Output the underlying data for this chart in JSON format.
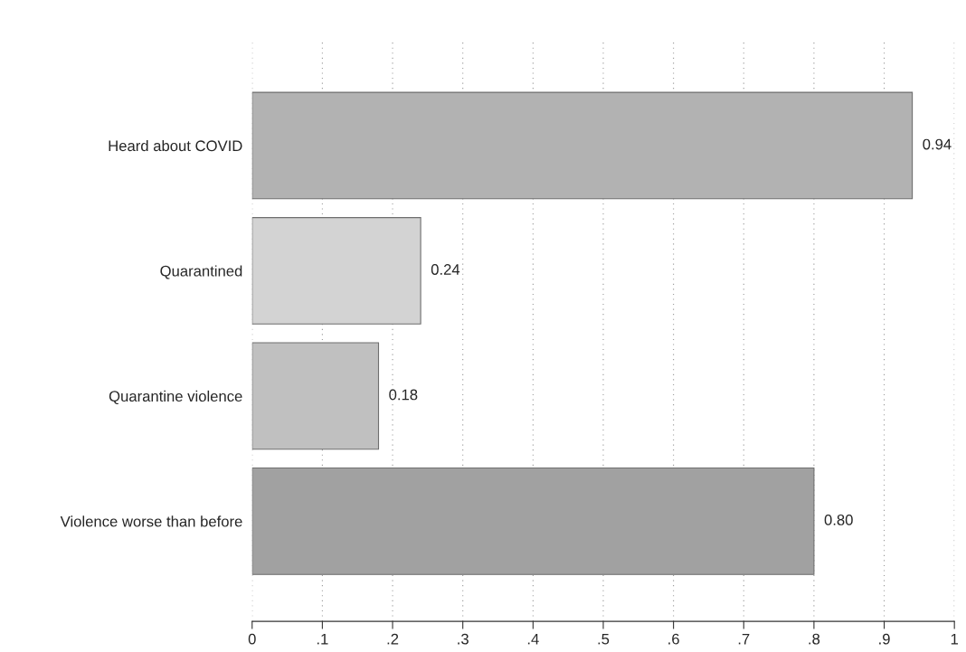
{
  "chart_data": {
    "type": "bar",
    "orientation": "horizontal",
    "categories": [
      "Heard about COVID",
      "Quarantined",
      "Quarantine violence",
      "Violence worse than before"
    ],
    "values": [
      0.94,
      0.24,
      0.18,
      0.8
    ],
    "value_labels": [
      "0.94",
      "0.24",
      "0.18",
      "0.80"
    ],
    "colors": [
      "#b2b2b2",
      "#d3d3d3",
      "#c0c0c0",
      "#a1a1a1"
    ],
    "xlim": [
      0,
      1
    ],
    "xticks": [
      0,
      {
        "value": 0.1,
        "label": ".1"
      },
      {
        "value": 0.2,
        "label": ".2"
      },
      {
        "value": 0.3,
        "label": ".3"
      },
      {
        "value": 0.4,
        "label": ".4"
      },
      {
        "value": 0.5,
        "label": ".5"
      },
      {
        "value": 0.6,
        "label": ".6"
      },
      {
        "value": 0.7,
        "label": ".7"
      },
      {
        "value": 0.8,
        "label": ".8"
      },
      {
        "value": 0.9,
        "label": ".9"
      },
      1
    ],
    "grid": "x"
  }
}
